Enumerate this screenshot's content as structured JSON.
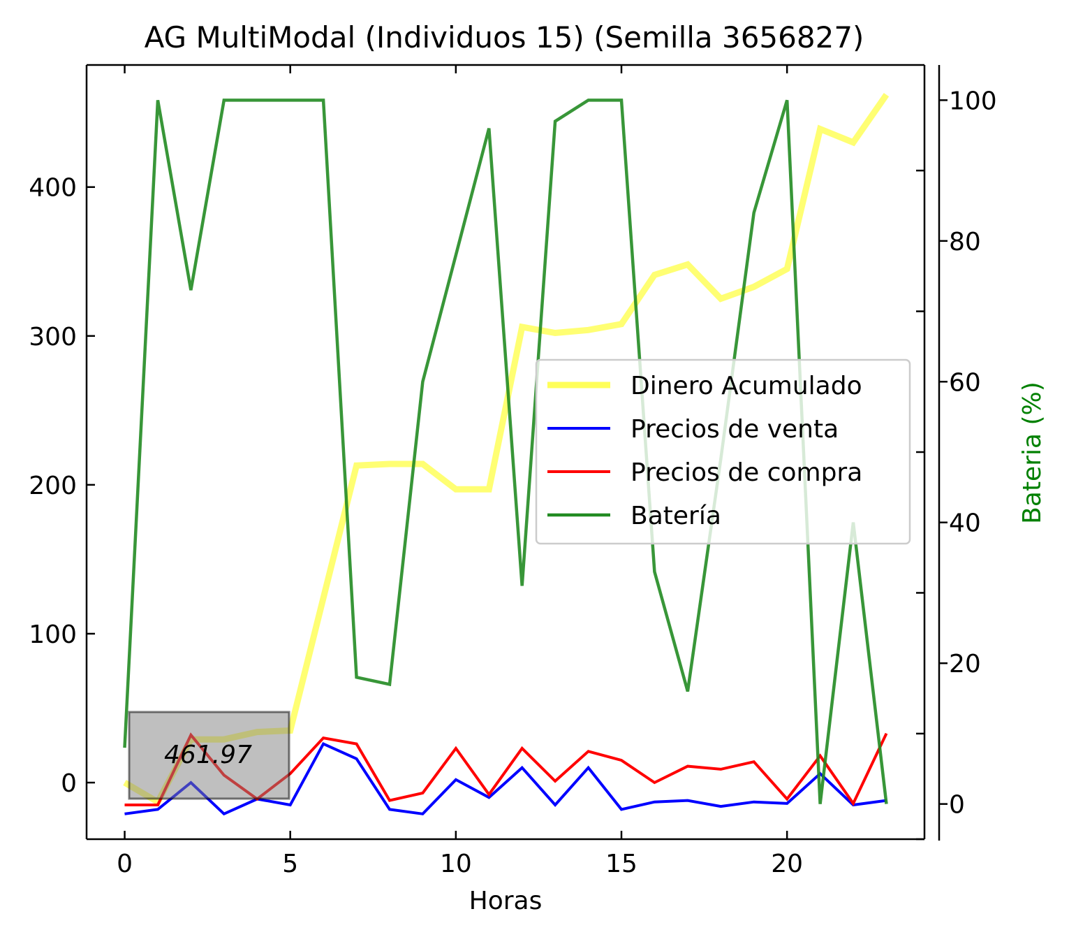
{
  "chart_data": {
    "type": "line",
    "title": "AG MultiModal (Individuos 15) (Semilla 3656827)",
    "xlabel": "Horas",
    "ylabel": "",
    "y2label": "Bateria (%)",
    "x": [
      0,
      1,
      2,
      3,
      4,
      5,
      6,
      7,
      8,
      9,
      10,
      11,
      12,
      13,
      14,
      15,
      16,
      17,
      18,
      19,
      20,
      21,
      22,
      23
    ],
    "xlim": [
      -1.15,
      24.15
    ],
    "ylim": [
      -38,
      482
    ],
    "y2lim": [
      -5,
      105
    ],
    "xticks": [
      0,
      5,
      10,
      15,
      20
    ],
    "yticks": [
      0,
      100,
      200,
      300,
      400
    ],
    "y2ticks": [
      0,
      20,
      40,
      60,
      80,
      100
    ],
    "series": [
      {
        "name": "Dinero Acumulado",
        "axis": "left",
        "color": "#ffff00",
        "opacity": 0.55,
        "values": [
          0,
          -13,
          29,
          29,
          34,
          35,
          124,
          213,
          214,
          214,
          197,
          197,
          306,
          302,
          304,
          308,
          341,
          348,
          325,
          333,
          345,
          439,
          430,
          462
        ]
      },
      {
        "name": "Precios de venta",
        "axis": "left",
        "color": "#0000ff",
        "values": [
          -21,
          -18,
          0,
          -21,
          -11,
          -15,
          26,
          16,
          -18,
          -21,
          2,
          -10,
          10,
          -15,
          10,
          -18,
          -13,
          -12,
          -16,
          -13,
          -14,
          6,
          -15,
          -12
        ]
      },
      {
        "name": "Precios de compra",
        "axis": "left",
        "color": "#ff0000",
        "values": [
          -15,
          -15,
          32,
          5,
          -11,
          6,
          30,
          26,
          -12,
          -7,
          23,
          -8,
          23,
          1,
          21,
          15,
          0,
          11,
          9,
          14,
          -11,
          18,
          -14,
          33
        ]
      },
      {
        "name": "Batería",
        "axis": "right",
        "color": "#228b22",
        "opacity": 0.9,
        "values": [
          8,
          100,
          73,
          100,
          100,
          100,
          100,
          18,
          17,
          60,
          78,
          96,
          31,
          97,
          100,
          100,
          33,
          16,
          49,
          84,
          100,
          0,
          40,
          0
        ]
      }
    ],
    "legend": {
      "position": "center-right",
      "entries": [
        "Dinero Acumulado",
        "Precios de venta",
        "Precios de compra",
        "Batería"
      ]
    },
    "annotation": {
      "text": "461.97",
      "box_color": "#808080"
    },
    "grid": false
  }
}
